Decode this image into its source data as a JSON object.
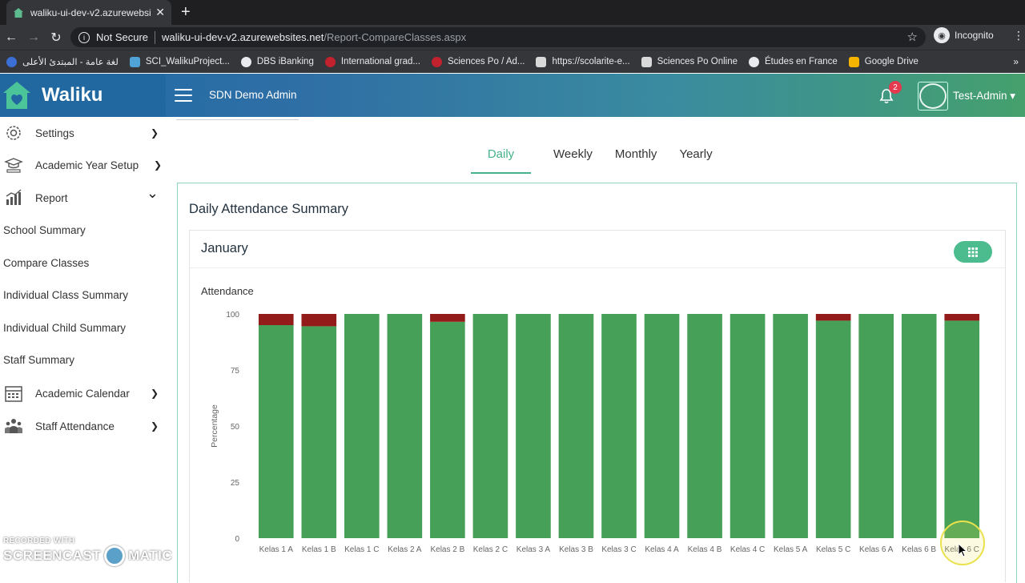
{
  "browser": {
    "tab_title": "waliku-ui-dev-v2.azurewebsite",
    "tab_close": "✕",
    "new_tab": "+",
    "not_secure": "Not Secure",
    "url_host": "waliku-ui-dev-v2.azurewebsites.net",
    "url_path": "/Report-CompareClasses.aspx",
    "incognito": "Incognito",
    "bookmarks": [
      {
        "label": "لغة عامة - المبتدئ الأعلى",
        "color": "#3b6fd6"
      },
      {
        "label": "SCI_WalikuProject...",
        "color": "#4fa3d6"
      },
      {
        "label": "DBS iBanking",
        "color": "#e8eaed"
      },
      {
        "label": "International grad...",
        "color": "#c2212e"
      },
      {
        "label": "Sciences Po / Ad...",
        "color": "#c2212e"
      },
      {
        "label": "https://scolarite-e...",
        "color": "#d9d9d9"
      },
      {
        "label": "Sciences Po Online",
        "color": "#d9d9d9"
      },
      {
        "label": "Études en France",
        "color": "#e8eaed"
      },
      {
        "label": "Google Drive",
        "color": "#f5b400"
      }
    ],
    "bookmarks_more": "»"
  },
  "header": {
    "brand": "Waliku",
    "school": "SDN Demo Admin",
    "notification_count": "2",
    "user": "Test-Admin ▾"
  },
  "sidebar": {
    "items": [
      {
        "label": "Settings",
        "chev": "❯"
      },
      {
        "label": "Academic Year Setup",
        "chev": "❯"
      },
      {
        "label": "Report",
        "chev": "⌄"
      }
    ],
    "report_sub": [
      "School Summary",
      "Compare Classes",
      "Individual Class Summary",
      "Individual Child Summary",
      "Staff Summary"
    ],
    "bottom_items": [
      {
        "label": "Academic Calendar",
        "chev": "❯"
      },
      {
        "label": "Staff Attendance",
        "chev": "❯"
      }
    ]
  },
  "tabs": [
    "Daily",
    "Weekly",
    "Monthly",
    "Yearly"
  ],
  "active_tab": "Daily",
  "panel_title": "Daily Attendance Summary",
  "card": {
    "month": "January",
    "subtitle": "Attendance"
  },
  "colors": {
    "present": "#47a057",
    "absent": "#931b19",
    "accent": "#46b28a"
  },
  "chart_data": {
    "type": "bar",
    "stacked": true,
    "categories": [
      "Kelas 1 A",
      "Kelas 1 B",
      "Kelas 1 C",
      "Kelas 2 A",
      "Kelas 2 B",
      "Kelas 2 C",
      "Kelas 3 A",
      "Kelas 3 B",
      "Kelas 3 C",
      "Kelas 4 A",
      "Kelas 4 B",
      "Kelas 4 C",
      "Kelas 5 A",
      "Kelas 5 C",
      "Kelas 6 A",
      "Kelas 6 B",
      "Kelas 6 C"
    ],
    "series": [
      {
        "values": [
          95,
          94.5,
          100,
          100,
          96.5,
          100,
          100,
          100,
          100,
          100,
          100,
          100,
          100,
          97,
          100,
          100,
          97
        ],
        "color": "#47a057"
      },
      {
        "values": [
          5,
          5.5,
          0,
          0,
          3.5,
          0,
          0,
          0,
          0,
          0,
          0,
          0,
          0,
          3,
          0,
          0,
          3
        ],
        "color": "#931b19"
      }
    ],
    "ylabel": "Percentage",
    "ylim": [
      0,
      100
    ],
    "yticks": [
      0,
      25,
      50,
      75,
      100
    ]
  },
  "watermark": {
    "line1": "RECORDED WITH",
    "line2a": "SCREENCAST",
    "line2b": "MATIC"
  }
}
